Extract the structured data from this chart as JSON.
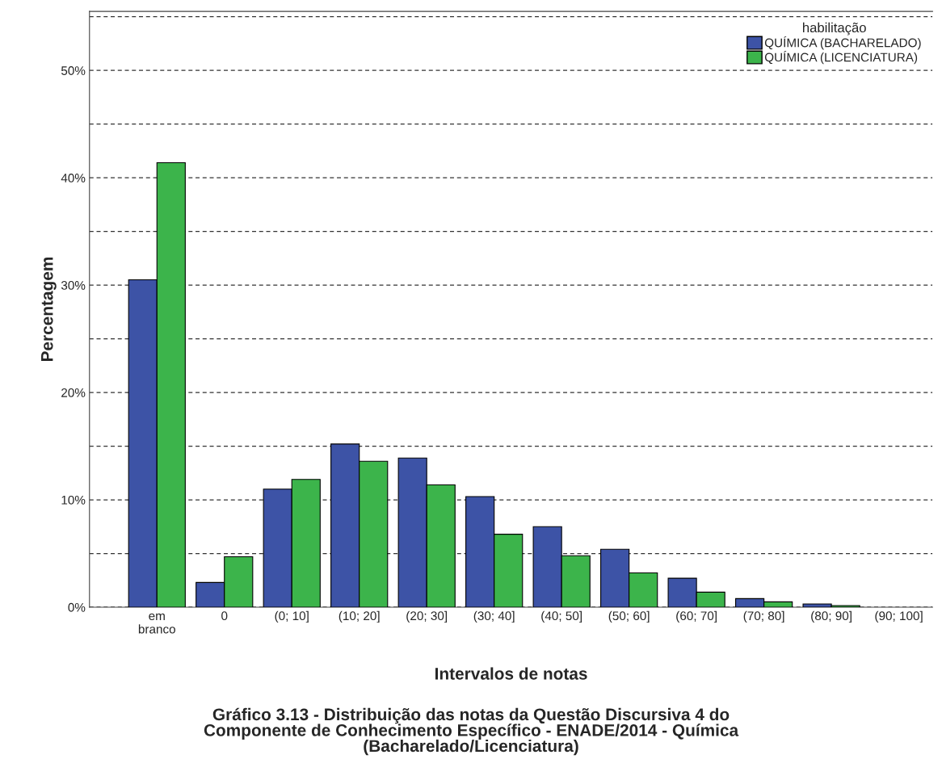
{
  "chart_data": {
    "type": "bar",
    "categories": [
      "em\nbranco",
      "0",
      "(0; 10]",
      "(10; 20]",
      "(20; 30]",
      "(30; 40]",
      "(40; 50]",
      "(50; 60]",
      "(60; 70]",
      "(70; 80]",
      "(80; 90]",
      "(90; 100]"
    ],
    "series": [
      {
        "name": "QUÍMICA (BACHARELADO)",
        "color": "#3d53a6",
        "values": [
          30.5,
          2.3,
          11.0,
          15.2,
          13.9,
          10.3,
          7.5,
          5.4,
          2.7,
          0.8,
          0.3,
          null
        ]
      },
      {
        "name": "QUÍMICA (LICENCIATURA)",
        "color": "#3cb44b",
        "values": [
          41.4,
          4.7,
          11.9,
          13.6,
          11.4,
          6.8,
          4.8,
          3.2,
          1.4,
          0.5,
          0.15,
          null
        ]
      }
    ],
    "xlabel": "Intervalos de notas",
    "ylabel": "Percentagem",
    "legend_title": "habilitação",
    "ylim": [
      0,
      55.5
    ],
    "yticks": [
      {
        "value": 0,
        "label": "0%"
      },
      {
        "value": 5,
        "label": null
      },
      {
        "value": 10,
        "label": "10%"
      },
      {
        "value": 15,
        "label": null
      },
      {
        "value": 20,
        "label": "20%"
      },
      {
        "value": 25,
        "label": null
      },
      {
        "value": 30,
        "label": "30%"
      },
      {
        "value": 35,
        "label": null
      },
      {
        "value": 40,
        "label": "40%"
      },
      {
        "value": 45,
        "label": null
      },
      {
        "value": 50,
        "label": "50%"
      },
      {
        "value": 55,
        "label": null
      }
    ],
    "grid": "y",
    "legend": "top right",
    "annotations": [
      "Gráfico 3.13 - Distribuição das notas da Questão Discursiva 4 do\nComponente de Conhecimento Específico - ENADE/2014 - Química\n(Bacharelado/Licenciatura)"
    ]
  }
}
